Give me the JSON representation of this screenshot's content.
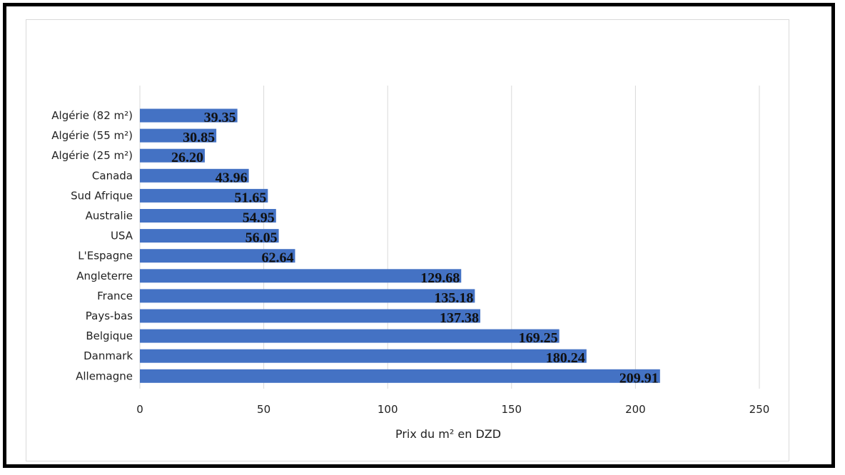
{
  "chart_data": {
    "type": "bar",
    "orientation": "horizontal",
    "categories": [
      "Algérie (82 m²)",
      "Algérie (55 m²)",
      "Algérie (25 m²)",
      "Canada",
      "Sud Afrique",
      "Australie",
      "USA",
      "L'Espagne",
      "Angleterre",
      "France",
      "Pays-bas",
      "Belgique",
      "Danmark",
      "Allemagne"
    ],
    "values": [
      39.35,
      30.85,
      26.2,
      43.96,
      51.65,
      54.95,
      56.05,
      62.64,
      129.68,
      135.18,
      137.38,
      169.25,
      180.24,
      209.91
    ],
    "data_labels": [
      "39.35",
      "30.85",
      "26.20",
      "43.96",
      "51.65",
      "54.95",
      "56.05",
      "62.64",
      "129.68",
      "135.18",
      "137.38",
      "169.25",
      "180.24",
      "209.91"
    ],
    "xlabel": "Prix du m² en DZD",
    "ylabel": "",
    "xlim": [
      0,
      250
    ],
    "xticks": [
      "0",
      "50",
      "100",
      "150",
      "200",
      "250"
    ],
    "grid": "vertical",
    "legend": "none",
    "bar_color": "#4472c4"
  }
}
